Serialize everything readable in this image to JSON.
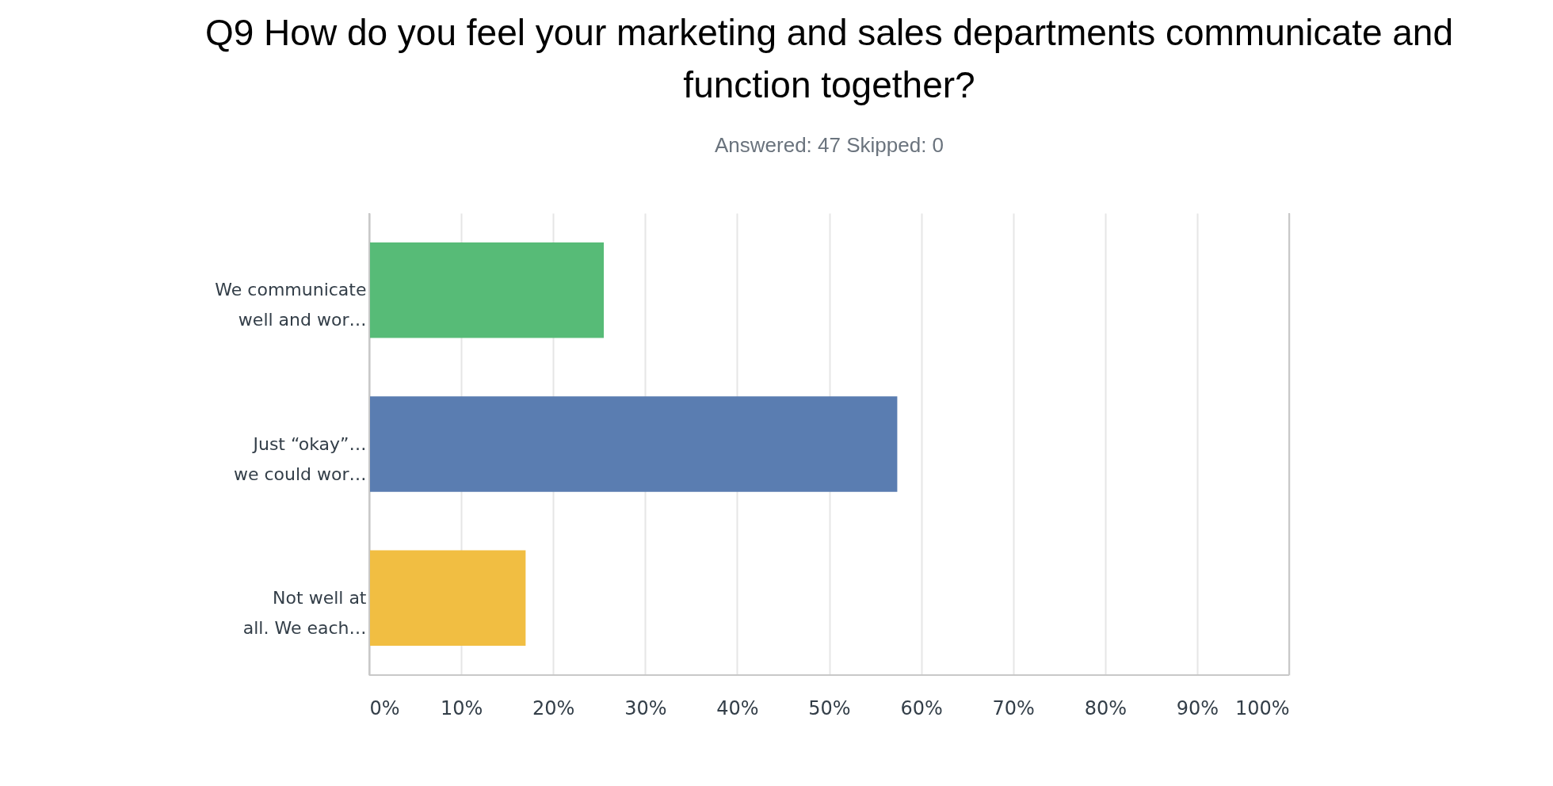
{
  "chart_data": {
    "type": "bar",
    "orientation": "horizontal",
    "title": "Q9 How do you feel your marketing and sales departments communicate and function together?",
    "subtitle": "Answered: 47      Skipped: 0",
    "categories": [
      "We communicate\nwell and wor…",
      "Just “okay”…\nwe could wor…",
      "Not well at\nall. We each…"
    ],
    "values": [
      25.5,
      57.4,
      17.0
    ],
    "colors": [
      "#57bb77",
      "#5a7db1",
      "#f1be42"
    ],
    "xlim": [
      0,
      100
    ],
    "xticks": [
      {
        "value": 0,
        "label": "0%"
      },
      {
        "value": 10,
        "label": "10%"
      },
      {
        "value": 20,
        "label": "20%"
      },
      {
        "value": 30,
        "label": "30%"
      },
      {
        "value": 40,
        "label": "40%"
      },
      {
        "value": 50,
        "label": "50%"
      },
      {
        "value": 60,
        "label": "60%"
      },
      {
        "value": 70,
        "label": "70%"
      },
      {
        "value": 80,
        "label": "80%"
      },
      {
        "value": 90,
        "label": "90%"
      },
      {
        "value": 100,
        "label": "100%"
      }
    ],
    "grid": "x"
  }
}
